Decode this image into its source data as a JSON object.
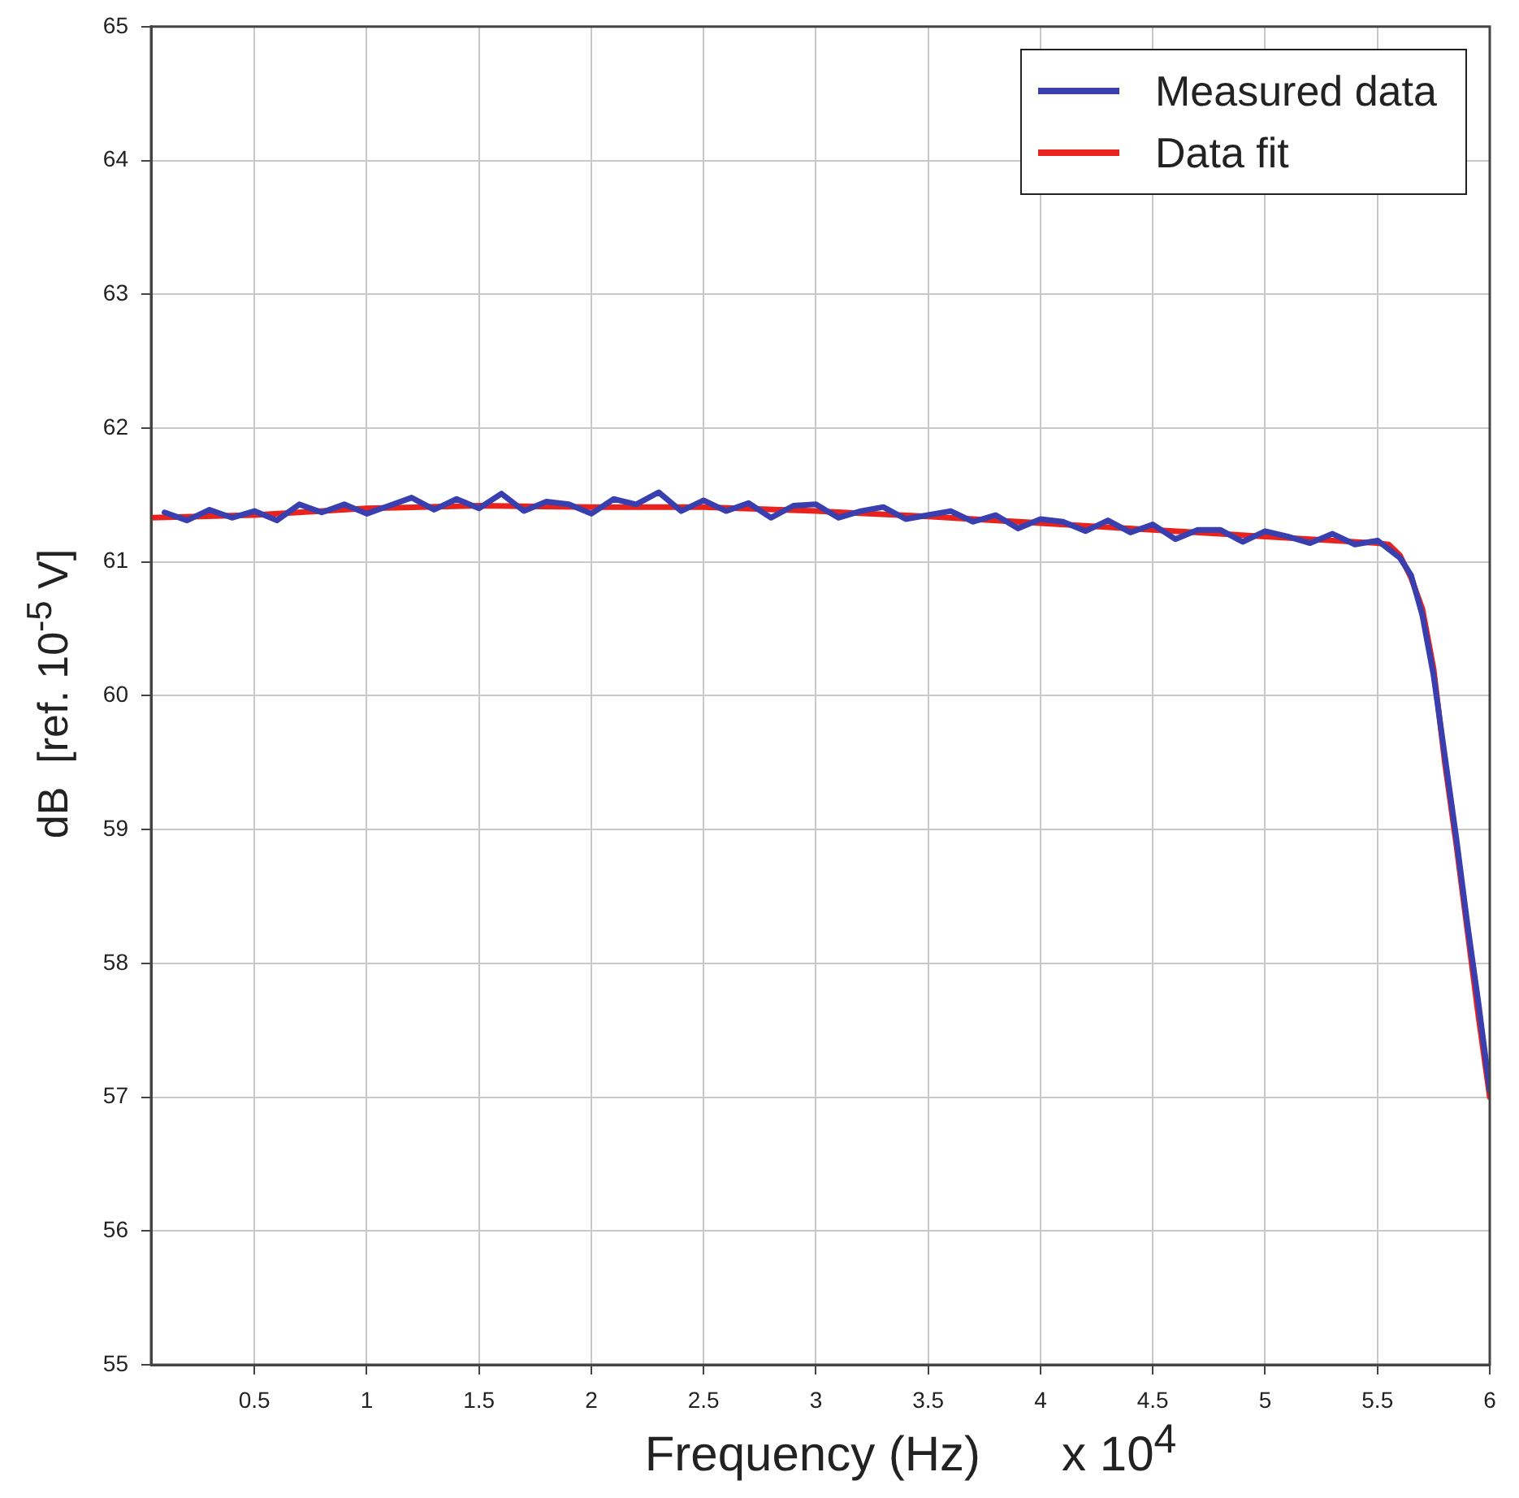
{
  "chart_data": {
    "type": "line",
    "xlabel": "Frequency (Hz)      x 10$^{4}$",
    "ylabel": "dB  [ref. 10$^{-5}$ V]",
    "xlim": [
      0.04,
      6
    ],
    "xticks": [
      0.5,
      1,
      1.5,
      2,
      2.5,
      3,
      3.5,
      4,
      4.5,
      5,
      5.5,
      6
    ],
    "ylim": [
      55,
      65
    ],
    "yticks": [
      55,
      56,
      57,
      58,
      59,
      60,
      61,
      62,
      63,
      64,
      65
    ],
    "grid": true,
    "legend": "top right",
    "marker": "none",
    "line_style": "solid",
    "series": [
      {
        "name": "Measured data",
        "color": "#3a3fb0",
        "x": [
          0.1,
          0.2,
          0.3,
          0.4,
          0.5,
          0.6,
          0.7,
          0.8,
          0.9,
          1.0,
          1.1,
          1.2,
          1.3,
          1.4,
          1.5,
          1.6,
          1.7,
          1.8,
          1.9,
          2.0,
          2.1,
          2.2,
          2.3,
          2.4,
          2.5,
          2.6,
          2.7,
          2.8,
          2.9,
          3.0,
          3.1,
          3.2,
          3.3,
          3.4,
          3.5,
          3.6,
          3.7,
          3.8,
          3.9,
          4.0,
          4.1,
          4.2,
          4.3,
          4.4,
          4.5,
          4.6,
          4.7,
          4.8,
          4.9,
          5.0,
          5.1,
          5.2,
          5.3,
          5.4,
          5.5,
          5.6,
          5.65,
          5.7,
          5.75,
          5.8,
          5.85,
          5.9,
          5.95,
          6.0
        ],
        "values": [
          61.37,
          61.31,
          61.39,
          61.33,
          61.38,
          61.31,
          61.43,
          61.37,
          61.43,
          61.36,
          61.42,
          61.48,
          61.39,
          61.47,
          61.4,
          61.51,
          61.38,
          61.45,
          61.43,
          61.36,
          61.47,
          61.43,
          61.52,
          61.38,
          61.46,
          61.38,
          61.44,
          61.33,
          61.42,
          61.43,
          61.33,
          61.38,
          61.41,
          61.32,
          61.35,
          61.38,
          61.3,
          61.35,
          61.25,
          61.32,
          61.3,
          61.23,
          61.31,
          61.22,
          61.28,
          61.17,
          61.24,
          61.24,
          61.15,
          61.23,
          61.19,
          61.14,
          61.21,
          61.13,
          61.16,
          61.03,
          60.9,
          60.6,
          60.15,
          59.55,
          58.95,
          58.3,
          57.7,
          57.05
        ]
      },
      {
        "name": "Data fit",
        "color": "#e8231e",
        "x": [
          0.04,
          0.5,
          1,
          1.5,
          2,
          2.5,
          3,
          3.5,
          4,
          4.5,
          5,
          5.5,
          5.55,
          5.6,
          5.65,
          5.7,
          5.75,
          5.8,
          5.85,
          5.9,
          5.95,
          6.0
        ],
        "values": [
          61.33,
          61.35,
          61.4,
          61.42,
          61.41,
          61.41,
          61.38,
          61.34,
          61.29,
          61.24,
          61.19,
          61.14,
          61.13,
          61.05,
          60.88,
          60.65,
          60.2,
          59.5,
          58.9,
          58.25,
          57.6,
          57.0
        ]
      }
    ]
  }
}
